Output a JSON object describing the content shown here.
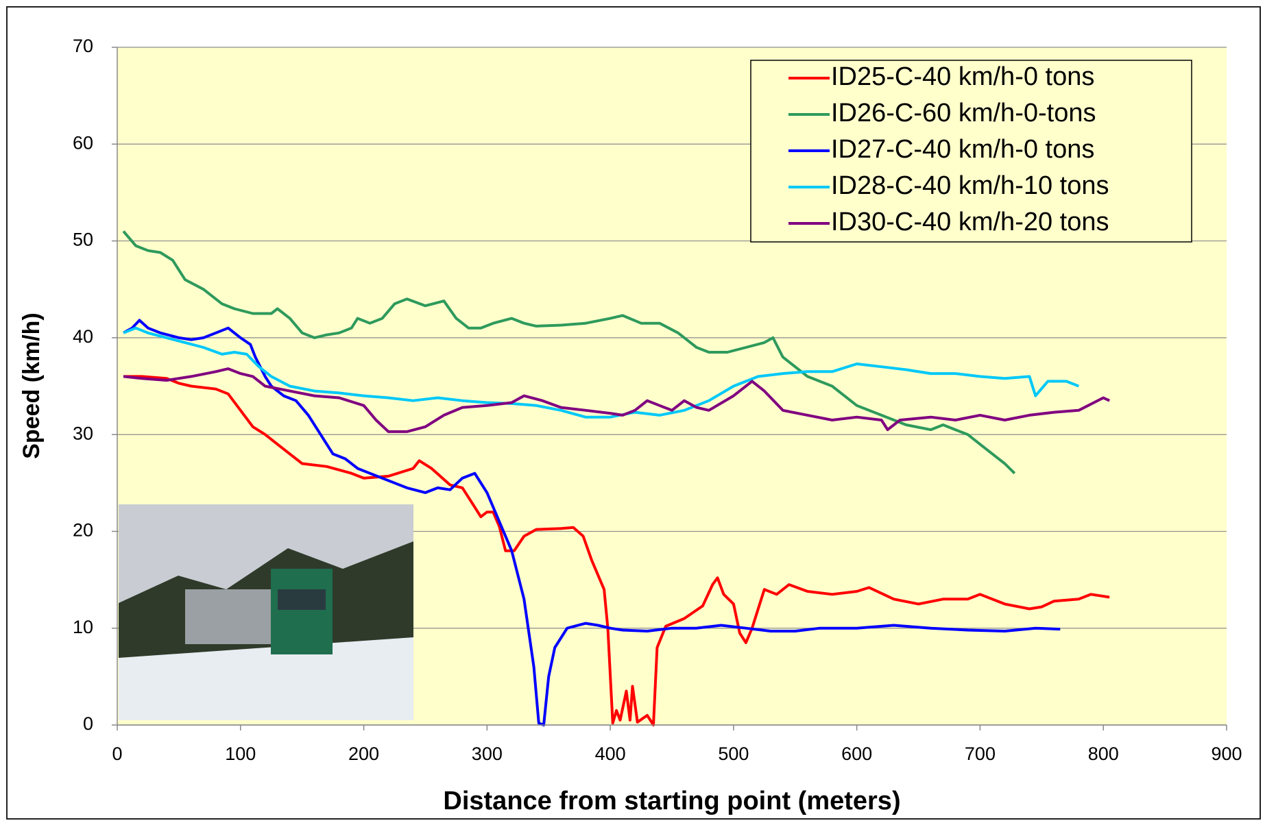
{
  "chart_data": {
    "type": "line",
    "x_label": "Distance from starting point (meters)",
    "y_label": "Speed (km/h)",
    "xlim": [
      0,
      900
    ],
    "xticks": [
      0,
      100,
      200,
      300,
      400,
      500,
      600,
      700,
      800,
      900
    ],
    "ylim": [
      0,
      70
    ],
    "yticks": [
      0,
      10,
      20,
      30,
      40,
      50,
      60,
      70
    ],
    "grid": true,
    "legend": "upper right",
    "series": [
      {
        "name": "ID25-C-40 km/h-0 tons",
        "color": "#ff0000",
        "x": [
          5,
          20,
          40,
          50,
          60,
          80,
          90,
          100,
          110,
          120,
          130,
          140,
          150,
          170,
          190,
          200,
          220,
          240,
          245,
          255,
          270,
          280,
          290,
          295,
          300,
          305,
          310,
          315,
          322,
          330,
          340,
          360,
          370,
          378,
          385,
          390,
          395,
          398,
          402,
          405,
          408,
          413,
          416,
          418,
          422,
          430,
          435,
          438,
          445,
          460,
          475,
          483,
          487,
          492,
          500,
          505,
          510,
          515,
          520,
          525,
          535,
          545,
          560,
          580,
          600,
          610,
          630,
          650,
          670,
          690,
          700,
          720,
          740,
          750,
          760,
          780,
          790,
          805
        ],
        "values": [
          36,
          36,
          35.8,
          35.3,
          35,
          34.7,
          34.2,
          32.5,
          30.8,
          30,
          29,
          28,
          27,
          26.7,
          26,
          25.5,
          25.7,
          26.5,
          27.3,
          26.5,
          24.8,
          24.5,
          22.5,
          21.5,
          22,
          22,
          20.5,
          18,
          18,
          19.5,
          20.2,
          20.3,
          20.4,
          19.5,
          17,
          15.5,
          14,
          10,
          0.2,
          1.5,
          0.5,
          3.5,
          0.5,
          4,
          0.3,
          1,
          0,
          8,
          10.2,
          11,
          12.3,
          14.5,
          15.2,
          13.5,
          12.5,
          9.5,
          8.5,
          10,
          12,
          14,
          13.5,
          14.5,
          13.8,
          13.5,
          13.8,
          14.2,
          13,
          12.5,
          13,
          13,
          13.5,
          12.5,
          12,
          12.2,
          12.8,
          13,
          13.5,
          13.2
        ]
      },
      {
        "name": "ID26-C-60 km/h-0-tons",
        "color": "#2e9a5c",
        "x": [
          5,
          15,
          25,
          35,
          45,
          55,
          70,
          85,
          95,
          110,
          125,
          130,
          140,
          150,
          160,
          170,
          180,
          190,
          195,
          205,
          215,
          225,
          235,
          250,
          265,
          275,
          285,
          295,
          305,
          320,
          330,
          340,
          360,
          380,
          400,
          410,
          425,
          440,
          455,
          470,
          480,
          495,
          510,
          525,
          532,
          540,
          560,
          580,
          600,
          620,
          640,
          660,
          670,
          680,
          690,
          700,
          710,
          720,
          728
        ],
        "values": [
          51,
          49.5,
          49,
          48.8,
          48,
          46,
          45,
          43.5,
          43,
          42.5,
          42.5,
          43,
          42,
          40.5,
          40,
          40.3,
          40.5,
          41,
          42,
          41.5,
          42,
          43.5,
          44,
          43.3,
          43.8,
          42,
          41,
          41,
          41.5,
          42,
          41.5,
          41.2,
          41.3,
          41.5,
          42,
          42.3,
          41.5,
          41.5,
          40.5,
          39,
          38.5,
          38.5,
          39,
          39.5,
          40,
          38,
          36,
          35,
          33,
          32,
          31,
          30.5,
          31,
          30.5,
          30,
          29,
          28,
          27,
          26
        ]
      },
      {
        "name": "ID27-C-40 km/h-0 tons",
        "color": "#0000ff",
        "x": [
          5,
          12,
          18,
          25,
          35,
          50,
          60,
          70,
          80,
          90,
          100,
          108,
          112,
          120,
          125,
          135,
          145,
          155,
          165,
          175,
          185,
          195,
          205,
          215,
          225,
          235,
          250,
          260,
          270,
          280,
          290,
          300,
          310,
          320,
          330,
          338,
          342,
          346,
          350,
          355,
          365,
          380,
          390,
          400,
          410,
          430,
          450,
          470,
          490,
          510,
          530,
          550,
          570,
          600,
          630,
          660,
          690,
          720,
          745,
          765
        ],
        "values": [
          40.5,
          41,
          41.8,
          41,
          40.5,
          40,
          39.8,
          40,
          40.5,
          41,
          40,
          39.3,
          38,
          36,
          35,
          34,
          33.5,
          32,
          30,
          28,
          27.5,
          26.5,
          26,
          25.5,
          25,
          24.5,
          24,
          24.5,
          24.3,
          25.5,
          26,
          24,
          21,
          18,
          13,
          6,
          0.2,
          0,
          5,
          8,
          10,
          10.5,
          10.3,
          10,
          9.8,
          9.7,
          10,
          10,
          10.3,
          10,
          9.7,
          9.7,
          10,
          10,
          10.3,
          10,
          9.8,
          9.7,
          10,
          9.9
        ]
      },
      {
        "name": "ID28-C-40 km/h-10 tons",
        "color": "#00c8f8",
        "x": [
          5,
          15,
          25,
          40,
          55,
          70,
          85,
          95,
          105,
          115,
          125,
          140,
          160,
          180,
          200,
          220,
          240,
          260,
          280,
          300,
          320,
          340,
          360,
          380,
          400,
          420,
          440,
          460,
          480,
          500,
          520,
          540,
          560,
          580,
          600,
          620,
          640,
          660,
          680,
          700,
          720,
          740,
          745,
          755,
          770,
          780
        ],
        "values": [
          40.5,
          41,
          40.5,
          40,
          39.5,
          39,
          38.3,
          38.5,
          38.3,
          37,
          36,
          35,
          34.5,
          34.3,
          34,
          33.8,
          33.5,
          33.8,
          33.5,
          33.3,
          33.2,
          33,
          32.5,
          31.8,
          31.8,
          32.3,
          32,
          32.5,
          33.5,
          35,
          36,
          36.3,
          36.5,
          36.5,
          37.3,
          37,
          36.7,
          36.3,
          36.3,
          36,
          35.8,
          36,
          34,
          35.5,
          35.5,
          35
        ]
      },
      {
        "name": "ID30-C-40 km/h-20 tons",
        "color": "#800080",
        "x": [
          5,
          20,
          40,
          60,
          80,
          90,
          100,
          110,
          120,
          140,
          160,
          180,
          200,
          210,
          220,
          235,
          250,
          265,
          280,
          300,
          320,
          330,
          345,
          360,
          380,
          400,
          410,
          420,
          430,
          440,
          450,
          460,
          470,
          480,
          500,
          515,
          525,
          540,
          560,
          580,
          600,
          620,
          625,
          635,
          660,
          680,
          700,
          720,
          740,
          760,
          780,
          800,
          805
        ],
        "values": [
          36,
          35.8,
          35.6,
          36,
          36.5,
          36.8,
          36.3,
          36,
          35,
          34.5,
          34,
          33.8,
          33,
          31.5,
          30.3,
          30.3,
          30.8,
          32,
          32.8,
          33,
          33.3,
          34,
          33.5,
          32.8,
          32.5,
          32.2,
          32,
          32.5,
          33.5,
          33,
          32.5,
          33.5,
          32.8,
          32.5,
          34,
          35.5,
          34.5,
          32.5,
          32,
          31.5,
          31.8,
          31.5,
          30.5,
          31.5,
          31.8,
          31.5,
          32,
          31.5,
          32,
          32.3,
          32.5,
          33.8,
          33.5
        ]
      }
    ]
  }
}
